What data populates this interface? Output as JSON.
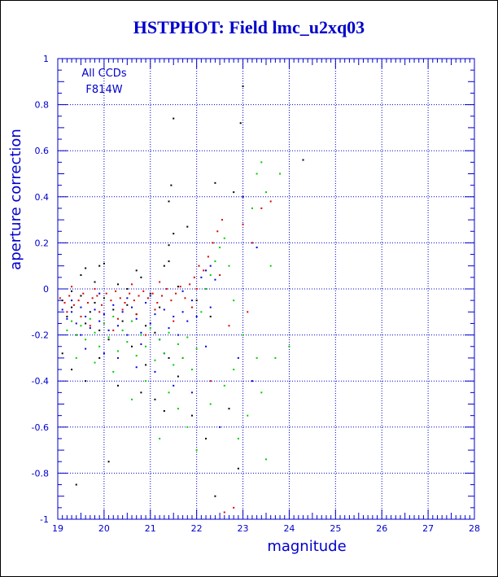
{
  "colors": {
    "axis": "#0000cc",
    "title": "#0000cc",
    "grid": "#0000cc",
    "series_black": "#000000",
    "series_red": "#e00000",
    "series_blue": "#0000dd",
    "series_green": "#00cc00"
  },
  "chart_data": {
    "type": "scatter",
    "title": "HSTPHOT: Field lmc_u2xq03",
    "xlabel": "magnitude",
    "ylabel": "aperture correction",
    "xlim": [
      19,
      28
    ],
    "ylim": [
      -1,
      1
    ],
    "x_ticks": [
      "19",
      "20",
      "21",
      "22",
      "23",
      "24",
      "25",
      "26",
      "27",
      "28"
    ],
    "y_ticks": [
      "-1",
      "-0.8",
      "-0.6",
      "-0.4",
      "-0.2",
      "0",
      "0.2",
      "0.4",
      "0.6",
      "0.8",
      "1"
    ],
    "grid": true,
    "annotations": [
      "All CCDs",
      "F814W"
    ],
    "series": [
      {
        "color": "black",
        "points": [
          [
            19.1,
            -0.05
          ],
          [
            19.2,
            -0.12
          ],
          [
            19.3,
            -0.08
          ],
          [
            19.4,
            -0.2
          ],
          [
            19.5,
            -0.03
          ],
          [
            19.6,
            -0.15
          ],
          [
            19.7,
            -0.1
          ],
          [
            19.8,
            -0.06
          ],
          [
            19.9,
            -0.18
          ],
          [
            20.0,
            -0.04
          ],
          [
            20.1,
            -0.22
          ],
          [
            20.2,
            -0.09
          ],
          [
            20.3,
            0.02
          ],
          [
            20.4,
            -0.14
          ],
          [
            20.5,
            -0.07
          ],
          [
            20.6,
            -0.25
          ],
          [
            20.7,
            -0.11
          ],
          [
            20.8,
            0.05
          ],
          [
            20.9,
            -0.16
          ],
          [
            21.0,
            -0.02
          ],
          [
            21.1,
            -0.19
          ],
          [
            21.2,
            -0.08
          ],
          [
            21.3,
            0.1
          ],
          [
            21.4,
            -0.3
          ],
          [
            21.5,
            0.74
          ],
          [
            21.45,
            0.45
          ],
          [
            21.4,
            0.38
          ],
          [
            21.5,
            0.24
          ],
          [
            21.4,
            0.19
          ],
          [
            21.4,
            0.12
          ],
          [
            20.0,
            0.11
          ],
          [
            19.6,
            0.09
          ],
          [
            19.5,
            0.06
          ],
          [
            19.9,
            0.1
          ],
          [
            20.7,
            0.08
          ],
          [
            21.8,
            0.27
          ],
          [
            22.4,
            0.46
          ],
          [
            22.8,
            0.42
          ],
          [
            22.95,
            0.72
          ],
          [
            23.0,
            0.88
          ],
          [
            24.3,
            0.56
          ],
          [
            19.3,
            -0.35
          ],
          [
            19.6,
            -0.4
          ],
          [
            19.9,
            -0.3
          ],
          [
            20.3,
            -0.42
          ],
          [
            20.8,
            -0.45
          ],
          [
            21.1,
            -0.48
          ],
          [
            21.3,
            -0.53
          ],
          [
            21.9,
            -0.55
          ],
          [
            22.2,
            -0.65
          ],
          [
            20.1,
            -0.75
          ],
          [
            19.4,
            -0.85
          ],
          [
            22.4,
            -0.9
          ],
          [
            22.9,
            -0.78
          ],
          [
            22.7,
            -0.52
          ],
          [
            21.6,
            -0.38
          ],
          [
            19.1,
            -0.28
          ],
          [
            19.3,
            -0.01
          ],
          [
            19.8,
            0.03
          ],
          [
            20.5,
            0.0
          ],
          [
            21.6,
            0.01
          ],
          [
            22.0,
            -0.05
          ],
          [
            22.3,
            -0.12
          ],
          [
            20.9,
            -0.33
          ]
        ]
      },
      {
        "color": "red",
        "points": [
          [
            19.05,
            -0.04
          ],
          [
            19.15,
            -0.06
          ],
          [
            19.25,
            -0.03
          ],
          [
            19.35,
            -0.07
          ],
          [
            19.45,
            -0.05
          ],
          [
            19.55,
            -0.02
          ],
          [
            19.65,
            -0.06
          ],
          [
            19.75,
            -0.04
          ],
          [
            19.85,
            -0.03
          ],
          [
            19.95,
            -0.07
          ],
          [
            20.05,
            -0.02
          ],
          [
            20.15,
            -0.05
          ],
          [
            20.25,
            -0.01
          ],
          [
            20.35,
            -0.04
          ],
          [
            20.45,
            -0.06
          ],
          [
            20.55,
            -0.02
          ],
          [
            20.65,
            -0.05
          ],
          [
            20.75,
            -0.03
          ],
          [
            20.85,
            -0.01
          ],
          [
            20.95,
            -0.04
          ],
          [
            21.05,
            -0.02
          ],
          [
            21.15,
            -0.06
          ],
          [
            21.25,
            -0.03
          ],
          [
            21.35,
            0.0
          ],
          [
            21.45,
            -0.05
          ],
          [
            21.55,
            -0.02
          ],
          [
            21.65,
            0.01
          ],
          [
            21.75,
            -0.04
          ],
          [
            21.85,
            0.02
          ],
          [
            21.95,
            0.05
          ],
          [
            22.05,
            0.1
          ],
          [
            22.15,
            0.08
          ],
          [
            22.25,
            0.14
          ],
          [
            22.35,
            0.2
          ],
          [
            22.45,
            0.25
          ],
          [
            22.55,
            0.3
          ],
          [
            23.0,
            0.28
          ],
          [
            23.4,
            0.35
          ],
          [
            23.6,
            0.38
          ],
          [
            23.2,
            0.2
          ],
          [
            19.2,
            -0.1
          ],
          [
            19.5,
            -0.12
          ],
          [
            19.9,
            -0.1
          ],
          [
            20.3,
            -0.13
          ],
          [
            20.7,
            -0.11
          ],
          [
            21.1,
            -0.09
          ],
          [
            21.5,
            -0.14
          ],
          [
            21.9,
            -0.08
          ],
          [
            22.6,
            -0.97
          ],
          [
            22.8,
            -0.95
          ],
          [
            22.3,
            -0.4
          ],
          [
            21.7,
            -0.3
          ],
          [
            20.9,
            -0.2
          ],
          [
            20.2,
            -0.18
          ],
          [
            22.7,
            -0.16
          ],
          [
            23.1,
            -0.1
          ],
          [
            19.3,
            0.01
          ],
          [
            19.8,
            0.0
          ],
          [
            20.6,
            0.02
          ],
          [
            21.2,
            0.03
          ],
          [
            22.0,
            0.0
          ],
          [
            22.5,
            0.06
          ],
          [
            19.7,
            -0.16
          ],
          [
            20.4,
            -0.09
          ]
        ]
      },
      {
        "color": "blue",
        "points": [
          [
            19.1,
            -0.09
          ],
          [
            19.2,
            -0.13
          ],
          [
            19.3,
            -0.1
          ],
          [
            19.4,
            -0.15
          ],
          [
            19.5,
            -0.08
          ],
          [
            19.6,
            -0.12
          ],
          [
            19.7,
            -0.17
          ],
          [
            19.8,
            -0.09
          ],
          [
            19.9,
            -0.14
          ],
          [
            20.0,
            -0.11
          ],
          [
            20.1,
            -0.18
          ],
          [
            20.2,
            -0.07
          ],
          [
            20.3,
            -0.16
          ],
          [
            20.4,
            -0.1
          ],
          [
            20.5,
            -0.2
          ],
          [
            20.6,
            -0.08
          ],
          [
            20.7,
            -0.13
          ],
          [
            20.8,
            -0.19
          ],
          [
            20.9,
            -0.06
          ],
          [
            21.0,
            -0.15
          ],
          [
            21.1,
            -0.11
          ],
          [
            21.2,
            -0.22
          ],
          [
            21.3,
            -0.09
          ],
          [
            21.4,
            -0.17
          ],
          [
            21.5,
            -0.12
          ],
          [
            21.6,
            -0.2
          ],
          [
            21.7,
            -0.1
          ],
          [
            21.8,
            -0.14
          ],
          [
            21.9,
            -0.05
          ],
          [
            22.0,
            -0.12
          ],
          [
            22.1,
            0.05
          ],
          [
            22.2,
            0.08
          ],
          [
            22.3,
            0.1
          ],
          [
            22.4,
            0.04
          ],
          [
            23.0,
            0.4
          ],
          [
            23.3,
            0.18
          ],
          [
            22.9,
            -0.3
          ],
          [
            23.2,
            -0.4
          ],
          [
            20.3,
            -0.3
          ],
          [
            20.7,
            -0.34
          ],
          [
            21.1,
            -0.36
          ],
          [
            21.5,
            -0.42
          ],
          [
            21.9,
            -0.45
          ],
          [
            19.6,
            -0.26
          ],
          [
            20.0,
            -0.28
          ],
          [
            22.5,
            -0.6
          ],
          [
            22.2,
            -0.25
          ],
          [
            21.3,
            -0.28
          ],
          [
            19.3,
            -0.05
          ],
          [
            19.9,
            -0.02
          ],
          [
            20.5,
            -0.04
          ],
          [
            21.0,
            -0.03
          ],
          [
            21.7,
            -0.01
          ],
          [
            22.3,
            -0.08
          ],
          [
            20.8,
            -0.24
          ],
          [
            19.5,
            -0.2
          ]
        ]
      },
      {
        "color": "green",
        "points": [
          [
            19.2,
            -0.18
          ],
          [
            19.3,
            -0.14
          ],
          [
            19.4,
            -0.2
          ],
          [
            19.5,
            -0.16
          ],
          [
            19.6,
            -0.22
          ],
          [
            19.7,
            -0.13
          ],
          [
            19.8,
            -0.19
          ],
          [
            19.9,
            -0.25
          ],
          [
            20.0,
            -0.15
          ],
          [
            20.1,
            -0.21
          ],
          [
            20.2,
            -0.12
          ],
          [
            20.3,
            -0.27
          ],
          [
            20.4,
            -0.18
          ],
          [
            20.5,
            -0.23
          ],
          [
            20.6,
            -0.14
          ],
          [
            20.7,
            -0.29
          ],
          [
            20.8,
            -0.2
          ],
          [
            20.9,
            -0.25
          ],
          [
            21.0,
            -0.17
          ],
          [
            21.1,
            -0.31
          ],
          [
            21.2,
            -0.22
          ],
          [
            21.3,
            -0.28
          ],
          [
            21.4,
            -0.19
          ],
          [
            21.5,
            -0.33
          ],
          [
            21.6,
            -0.24
          ],
          [
            21.7,
            -0.3
          ],
          [
            21.8,
            -0.21
          ],
          [
            21.9,
            -0.35
          ],
          [
            22.0,
            -0.26
          ],
          [
            22.1,
            -0.1
          ],
          [
            22.2,
            0.0
          ],
          [
            22.3,
            0.06
          ],
          [
            22.4,
            0.12
          ],
          [
            22.5,
            0.18
          ],
          [
            22.6,
            0.22
          ],
          [
            22.7,
            0.1
          ],
          [
            22.8,
            -0.05
          ],
          [
            23.0,
            -0.2
          ],
          [
            23.2,
            0.35
          ],
          [
            23.3,
            0.5
          ],
          [
            23.4,
            0.55
          ],
          [
            23.5,
            0.42
          ],
          [
            23.6,
            0.1
          ],
          [
            23.8,
            0.5
          ],
          [
            23.7,
            -0.3
          ],
          [
            24.0,
            -0.25
          ],
          [
            23.4,
            -0.45
          ],
          [
            23.1,
            -0.55
          ],
          [
            22.9,
            -0.65
          ],
          [
            23.5,
            -0.74
          ],
          [
            22.0,
            -0.7
          ],
          [
            21.8,
            -0.6
          ],
          [
            21.2,
            -0.65
          ],
          [
            20.6,
            -0.48
          ],
          [
            20.9,
            -0.4
          ],
          [
            21.4,
            -0.45
          ],
          [
            22.3,
            -0.5
          ],
          [
            22.6,
            -0.42
          ],
          [
            19.4,
            -0.3
          ],
          [
            19.8,
            -0.32
          ],
          [
            20.2,
            -0.36
          ],
          [
            21.6,
            -0.52
          ],
          [
            22.8,
            -0.35
          ],
          [
            23.3,
            -0.3
          ]
        ]
      }
    ]
  }
}
